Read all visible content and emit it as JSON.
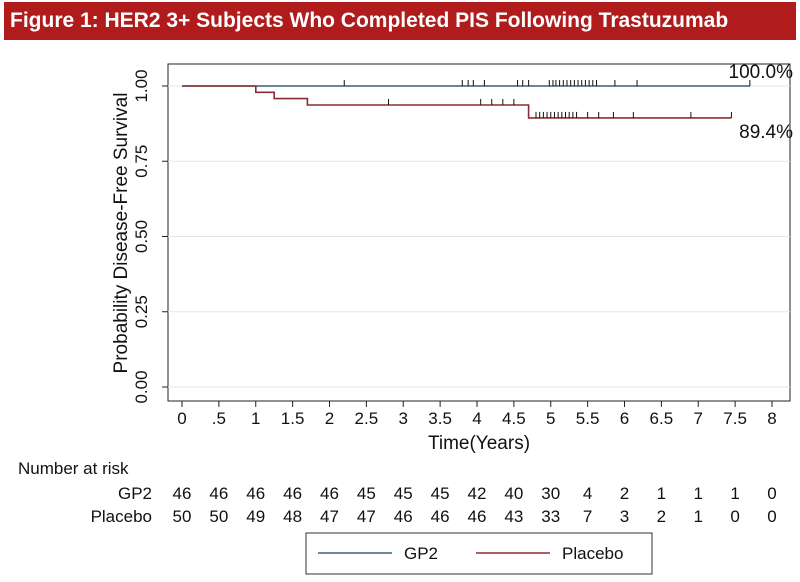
{
  "figure_title": "Figure 1: HER2 3+ Subjects Who Completed PIS Following Trastuzumab",
  "colors": {
    "title_bg": "#b01c1c",
    "gp2": "#3c5e78",
    "placebo": "#8b2e33"
  },
  "chart_data": {
    "type": "line",
    "subtype": "kaplan-meier step",
    "title": "",
    "xlabel": "Time(Years)",
    "ylabel": "Probability Disease-Free Survival",
    "xlim": [
      0,
      8
    ],
    "ylim": [
      0,
      1
    ],
    "x_ticks": [
      0,
      0.5,
      1,
      1.5,
      2,
      2.5,
      3,
      3.5,
      4,
      4.5,
      5,
      5.5,
      6,
      6.5,
      7,
      7.5,
      8
    ],
    "x_tick_labels": [
      "0",
      ".5",
      "1",
      "1.5",
      "2",
      "2.5",
      "3",
      "3.5",
      "4",
      "4.5",
      "5",
      "5.5",
      "6",
      "6.5",
      "7",
      "7.5",
      "8"
    ],
    "y_ticks": [
      0,
      0.25,
      0.5,
      0.75,
      1
    ],
    "y_tick_labels": [
      "0.00",
      "0.25",
      "0.50",
      "0.75",
      "1.00"
    ],
    "grid": true,
    "legend_position": "bottom",
    "series": [
      {
        "name": "GP2",
        "steps": [
          [
            0,
            1.0
          ],
          [
            7.7,
            1.0
          ]
        ],
        "censor_times": [
          2.2,
          3.8,
          3.88,
          3.95,
          4.1,
          4.55,
          4.62,
          4.7,
          4.98,
          5.03,
          5.07,
          5.12,
          5.17,
          5.22,
          5.27,
          5.32,
          5.37,
          5.42,
          5.47,
          5.52,
          5.57,
          5.62,
          5.87,
          6.17,
          7.7
        ],
        "end_label": "100.0%"
      },
      {
        "name": "Placebo",
        "steps": [
          [
            0,
            1.0
          ],
          [
            1.0,
            1.0
          ],
          [
            1.0,
            0.979
          ],
          [
            1.25,
            0.979
          ],
          [
            1.25,
            0.958
          ],
          [
            1.7,
            0.958
          ],
          [
            1.7,
            0.937
          ],
          [
            4.7,
            0.937
          ],
          [
            4.7,
            0.894
          ],
          [
            7.45,
            0.894
          ]
        ],
        "censor_times": [
          2.8,
          4.05,
          4.2,
          4.35,
          4.5,
          4.8,
          4.85,
          4.9,
          4.95,
          5.0,
          5.05,
          5.1,
          5.15,
          5.2,
          5.25,
          5.3,
          5.35,
          5.5,
          5.65,
          5.85,
          6.12,
          6.9,
          7.45
        ],
        "end_label": "89.4%"
      }
    ],
    "risk_table": {
      "header": "Number at risk",
      "rows": [
        {
          "label": "GP2",
          "values": [
            "46",
            "46",
            "46",
            "46",
            "46",
            "45",
            "45",
            "45",
            "42",
            "40",
            "30",
            "4",
            "2",
            "1",
            "1",
            "1",
            "0"
          ]
        },
        {
          "label": "Placebo",
          "values": [
            "50",
            "50",
            "49",
            "48",
            "47",
            "47",
            "46",
            "46",
            "46",
            "43",
            "33",
            "7",
            "3",
            "2",
            "1",
            "0",
            "0"
          ]
        }
      ]
    }
  }
}
